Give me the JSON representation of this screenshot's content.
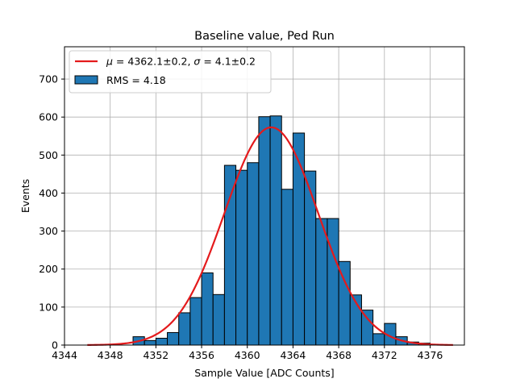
{
  "chart_data": {
    "type": "bar",
    "title": "Baseline value, Ped Run",
    "xlabel": "Sample Value [ADC Counts]",
    "ylabel": "Events",
    "xlim": [
      4344,
      4379
    ],
    "ylim": [
      0,
      785
    ],
    "xticks": [
      4344,
      4348,
      4352,
      4356,
      4360,
      4364,
      4368,
      4372,
      4376
    ],
    "yticks": [
      0,
      100,
      200,
      300,
      400,
      500,
      600,
      700
    ],
    "grid": true,
    "legend_position": "top-left",
    "bin_width": 1,
    "histogram": {
      "name": "RMS = 4.18",
      "color": "#1f77b4",
      "edge_color": "#000000",
      "bin_starts": [
        4346,
        4347,
        4348,
        4349,
        4350,
        4351,
        4352,
        4353,
        4354,
        4355,
        4356,
        4357,
        4358,
        4359,
        4360,
        4361,
        4362,
        4363,
        4364,
        4365,
        4366,
        4367,
        4368,
        4369,
        4370,
        4371,
        4372,
        4373,
        4374,
        4375,
        4376
      ],
      "counts": [
        0,
        0,
        0,
        0,
        22,
        12,
        18,
        33,
        85,
        125,
        190,
        133,
        473,
        460,
        480,
        601,
        603,
        410,
        558,
        458,
        333,
        333,
        220,
        132,
        92,
        30,
        57,
        22,
        8,
        5,
        0
      ]
    },
    "fit": {
      "name_mu": "4362.1±0.2",
      "name_sigma": "4.1±0.2",
      "mu": 4362.1,
      "sigma": 4.1,
      "amplitude": 573,
      "x_range": [
        4346,
        4378
      ],
      "color": "#e41a1c"
    },
    "legend": {
      "fit_prefix_mu": "μ = ",
      "fit_mid": ", ",
      "fit_prefix_sigma": "σ = "
    }
  }
}
